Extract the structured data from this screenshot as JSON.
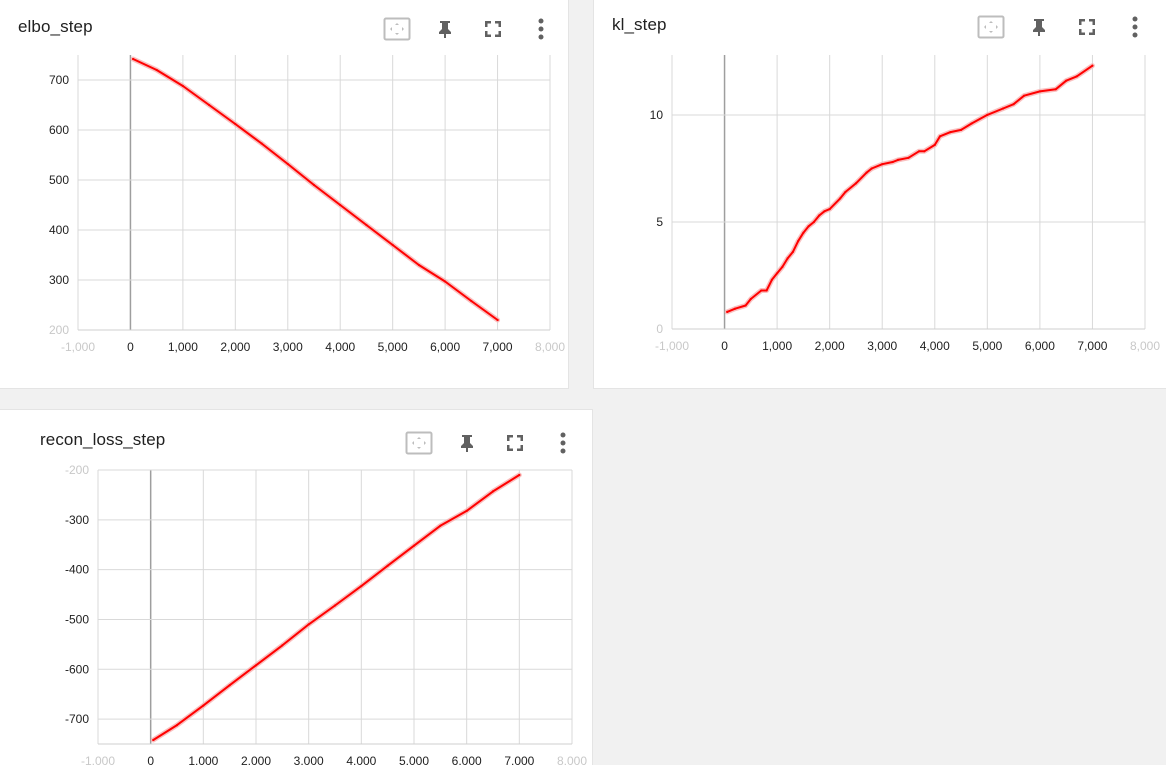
{
  "colors": {
    "line": "#ff0000",
    "line_raw": "#f7b0b0",
    "grid": "#d9d9d9",
    "zero_axis": "#9e9e9e"
  },
  "toolbar_icons": [
    "fit-domain-icon",
    "pin-icon",
    "fullscreen-icon",
    "more-vert-icon"
  ],
  "charts": [
    {
      "title": "elbo_step"
    },
    {
      "title": "kl_step"
    },
    {
      "title": "recon_loss_step"
    }
  ],
  "chart_data": [
    {
      "type": "line",
      "title": "elbo_step",
      "xlabel": "",
      "ylabel": "",
      "xlim": [
        -1000,
        8000
      ],
      "ylim": [
        200,
        750
      ],
      "xticks": [
        -1000,
        0,
        1000,
        2000,
        3000,
        4000,
        5000,
        6000,
        7000,
        8000
      ],
      "xtick_labels": [
        "-1,000",
        "0",
        "1,000",
        "2,000",
        "3,000",
        "4,000",
        "5,000",
        "6,000",
        "7,000",
        "8,000"
      ],
      "yticks": [
        200,
        300,
        400,
        500,
        600,
        700
      ],
      "ytick_labels": [
        "200",
        "300",
        "400",
        "500",
        "600",
        "700"
      ],
      "grid": true,
      "series": [
        {
          "x": [
            50,
            500,
            1000,
            1500,
            2000,
            2500,
            3000,
            3500,
            4000,
            4500,
            5000,
            5500,
            6000,
            6500,
            7000
          ],
          "values": [
            742,
            720,
            688,
            650,
            612,
            573,
            532,
            490,
            450,
            410,
            370,
            330,
            297,
            258,
            220
          ]
        }
      ]
    },
    {
      "type": "line",
      "title": "kl_step",
      "xlabel": "",
      "ylabel": "",
      "xlim": [
        -1000,
        8000
      ],
      "ylim": [
        0,
        12.8
      ],
      "xticks": [
        -1000,
        0,
        1000,
        2000,
        3000,
        4000,
        5000,
        6000,
        7000,
        8000
      ],
      "xtick_labels": [
        "-1,000",
        "0",
        "1,000",
        "2,000",
        "3,000",
        "4,000",
        "5,000",
        "6,000",
        "7,000",
        "8,000"
      ],
      "yticks": [
        0,
        5,
        10
      ],
      "ytick_labels": [
        "0",
        "5",
        "10"
      ],
      "grid": true,
      "series": [
        {
          "x": [
            50,
            200,
            400,
            500,
            700,
            800,
            900,
            1000,
            1100,
            1200,
            1300,
            1400,
            1500,
            1600,
            1700,
            1800,
            1900,
            2000,
            2200,
            2300,
            2500,
            2700,
            2800,
            3000,
            3200,
            3300,
            3500,
            3700,
            3800,
            4000,
            4100,
            4300,
            4500,
            4700,
            5000,
            5300,
            5500,
            5700,
            6000,
            6300,
            6500,
            6700,
            7000
          ],
          "values": [
            0.8,
            0.95,
            1.1,
            1.4,
            1.8,
            1.8,
            2.3,
            2.6,
            2.9,
            3.3,
            3.6,
            4.1,
            4.5,
            4.8,
            5.0,
            5.3,
            5.5,
            5.6,
            6.1,
            6.4,
            6.8,
            7.3,
            7.5,
            7.7,
            7.8,
            7.9,
            8.0,
            8.3,
            8.3,
            8.6,
            9.0,
            9.2,
            9.3,
            9.6,
            10.0,
            10.3,
            10.5,
            10.9,
            11.1,
            11.2,
            11.6,
            11.8,
            12.3
          ]
        }
      ]
    },
    {
      "type": "line",
      "title": "recon_loss_step",
      "xlabel": "",
      "ylabel": "",
      "xlim": [
        -1000,
        8000
      ],
      "ylim": [
        -750,
        -200
      ],
      "xticks": [
        -1000,
        0,
        1000,
        2000,
        3000,
        4000,
        5000,
        6000,
        7000,
        8000
      ],
      "xtick_labels": [
        "-1,000",
        "0",
        "1,000",
        "2,000",
        "3,000",
        "4,000",
        "5,000",
        "6,000",
        "7,000",
        "8,000"
      ],
      "yticks": [
        -700,
        -600,
        -500,
        -400,
        -300,
        -200
      ],
      "ytick_labels": [
        "-700",
        "-600",
        "-500",
        "-400",
        "-300",
        "-200"
      ],
      "grid": true,
      "series": [
        {
          "x": [
            50,
            500,
            1000,
            1500,
            2000,
            2500,
            3000,
            3500,
            4000,
            4500,
            5000,
            5500,
            6000,
            6500,
            7000
          ],
          "values": [
            -742,
            -712,
            -673,
            -632,
            -592,
            -552,
            -510,
            -472,
            -433,
            -392,
            -352,
            -312,
            -282,
            -243,
            -210
          ]
        }
      ]
    }
  ]
}
